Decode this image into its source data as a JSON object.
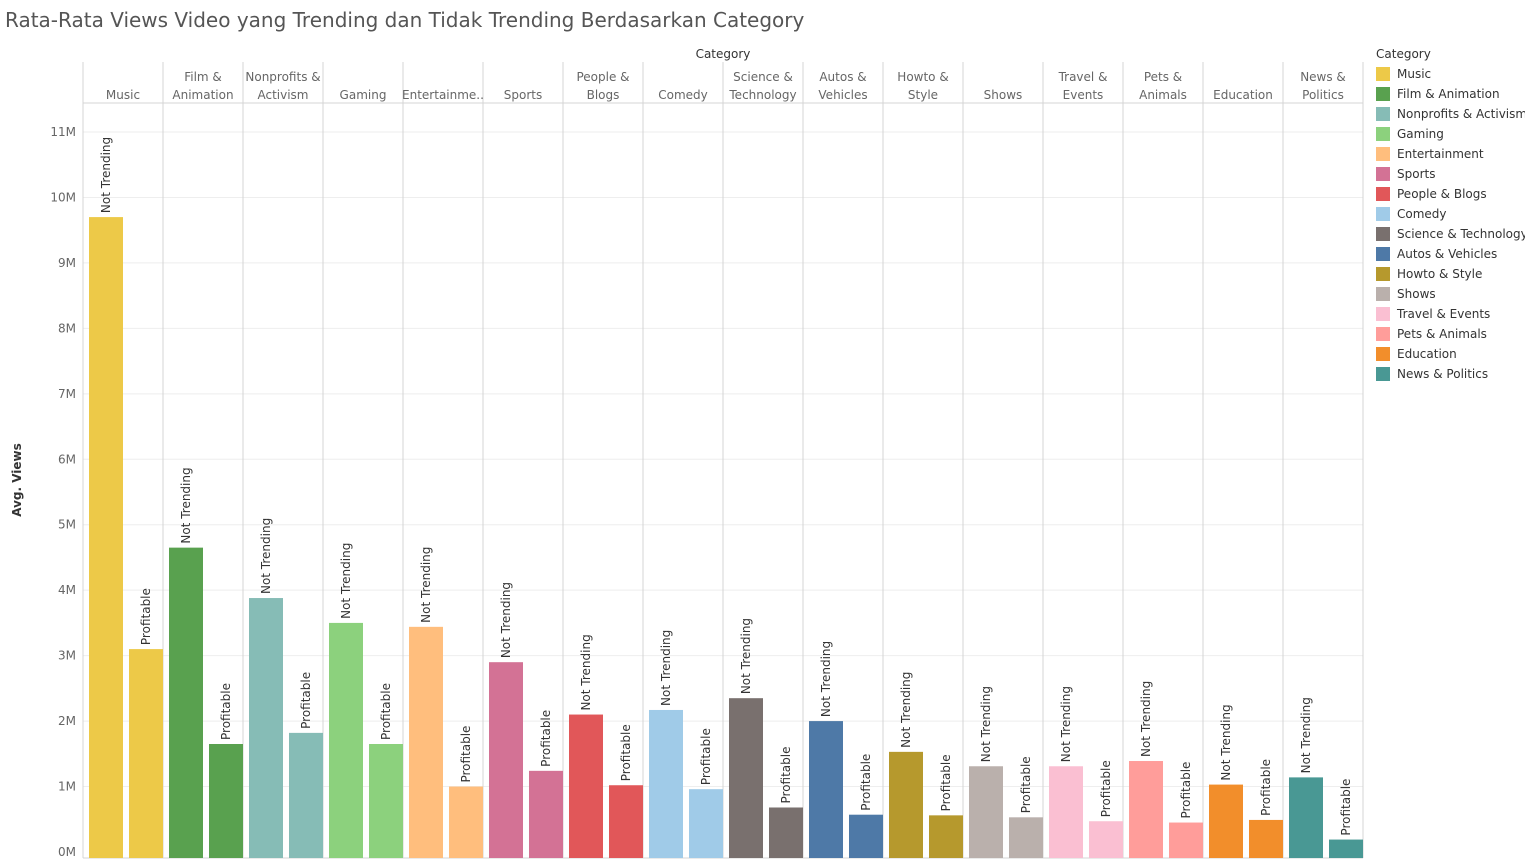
{
  "title": "Rata-Rata Views Video yang Trending dan Tidak Trending Berdasarkan Category",
  "chart_data": {
    "type": "bar",
    "title": "Rata-Rata Views Video yang Trending dan Tidak Trending Berdasarkan Category",
    "column_header": "Category",
    "ylabel": "Avg. Views",
    "ylim": [
      0,
      11500000
    ],
    "yticks": [
      0,
      1000000,
      2000000,
      3000000,
      4000000,
      5000000,
      6000000,
      7000000,
      8000000,
      9000000,
      10000000,
      11000000
    ],
    "ytick_labels": [
      "0M",
      "1M",
      "2M",
      "3M",
      "4M",
      "5M",
      "6M",
      "7M",
      "8M",
      "9M",
      "10M",
      "11M"
    ],
    "grid": true,
    "legend_title": "Category",
    "legend_position": "right",
    "categories": [
      {
        "name": "Music",
        "header": [
          "Music"
        ],
        "color": "#EDC948",
        "values": [
          {
            "label": "Not Trending",
            "value": 9700000
          },
          {
            "label": "Profitable",
            "value": 3100000
          }
        ]
      },
      {
        "name": "Film & Animation",
        "header": [
          "Film &",
          "Animation"
        ],
        "color": "#59A14F",
        "values": [
          {
            "label": "Not Trending",
            "value": 4650000
          },
          {
            "label": "Profitable",
            "value": 1650000
          }
        ]
      },
      {
        "name": "Nonprofits & Activism",
        "header": [
          "Nonprofits &",
          "Activism"
        ],
        "color": "#86BCB6",
        "values": [
          {
            "label": "Not Trending",
            "value": 3880000
          },
          {
            "label": "Profitable",
            "value": 1820000
          }
        ]
      },
      {
        "name": "Gaming",
        "header": [
          "Gaming"
        ],
        "color": "#8CD17D",
        "values": [
          {
            "label": "Not Trending",
            "value": 3500000
          },
          {
            "label": "Profitable",
            "value": 1650000
          }
        ]
      },
      {
        "name": "Entertainment",
        "header": [
          "Entertainme.."
        ],
        "color": "#FFBE7D",
        "values": [
          {
            "label": "Not Trending",
            "value": 3440000
          },
          {
            "label": "Profitable",
            "value": 1000000
          }
        ]
      },
      {
        "name": "Sports",
        "header": [
          "Sports"
        ],
        "color": "#D37295",
        "values": [
          {
            "label": "Not Trending",
            "value": 2900000
          },
          {
            "label": "Profitable",
            "value": 1240000
          }
        ]
      },
      {
        "name": "People & Blogs",
        "header": [
          "People &",
          "Blogs"
        ],
        "color": "#E15759",
        "values": [
          {
            "label": "Not Trending",
            "value": 2100000
          },
          {
            "label": "Profitable",
            "value": 1020000
          }
        ]
      },
      {
        "name": "Comedy",
        "header": [
          "Comedy"
        ],
        "color": "#A0CBE8",
        "values": [
          {
            "label": "Not Trending",
            "value": 2170000
          },
          {
            "label": "Profitable",
            "value": 960000
          }
        ]
      },
      {
        "name": "Science & Technology",
        "header": [
          "Science &",
          "Technology"
        ],
        "color": "#79706E",
        "values": [
          {
            "label": "Not Trending",
            "value": 2350000
          },
          {
            "label": "Profitable",
            "value": 680000
          }
        ]
      },
      {
        "name": "Autos & Vehicles",
        "header": [
          "Autos &",
          "Vehicles"
        ],
        "color": "#4E79A7",
        "values": [
          {
            "label": "Not Trending",
            "value": 2000000
          },
          {
            "label": "Profitable",
            "value": 570000
          }
        ]
      },
      {
        "name": "Howto & Style",
        "header": [
          "Howto &",
          "Style"
        ],
        "color": "#B6992D",
        "values": [
          {
            "label": "Not Trending",
            "value": 1530000
          },
          {
            "label": "Profitable",
            "value": 560000
          }
        ]
      },
      {
        "name": "Shows",
        "header": [
          "Shows"
        ],
        "color": "#BAB0AC",
        "values": [
          {
            "label": "Not Trending",
            "value": 1310000
          },
          {
            "label": "Profitable",
            "value": 530000
          }
        ]
      },
      {
        "name": "Travel & Events",
        "header": [
          "Travel &",
          "Events"
        ],
        "color": "#FABFD2",
        "values": [
          {
            "label": "Not Trending",
            "value": 1310000
          },
          {
            "label": "Profitable",
            "value": 470000
          }
        ]
      },
      {
        "name": "Pets & Animals",
        "header": [
          "Pets &",
          "Animals"
        ],
        "color": "#FF9D9A",
        "values": [
          {
            "label": "Not Trending",
            "value": 1390000
          },
          {
            "label": "Profitable",
            "value": 450000
          }
        ]
      },
      {
        "name": "Education",
        "header": [
          "Education"
        ],
        "color": "#F28E2B",
        "values": [
          {
            "label": "Not Trending",
            "value": 1030000
          },
          {
            "label": "Profitable",
            "value": 490000
          }
        ]
      },
      {
        "name": "News & Politics",
        "header": [
          "News &",
          "Politics"
        ],
        "color": "#499894",
        "values": [
          {
            "label": "Not Trending",
            "value": 1140000
          },
          {
            "label": "Profitable",
            "value": 190000
          }
        ]
      }
    ]
  }
}
